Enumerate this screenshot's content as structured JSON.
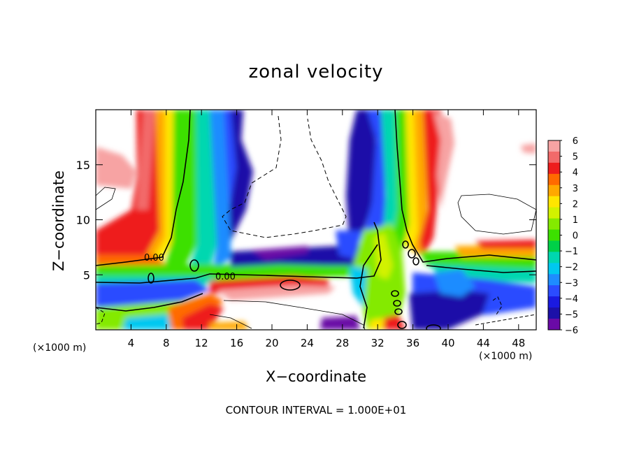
{
  "chart_data": {
    "type": "heatmap",
    "title": "zonal velocity",
    "xlabel": "X−coordinate",
    "ylabel": "Z−coordinate",
    "x_unit_left": "(×1000 m)",
    "x_unit_right": "(×1000 m)",
    "footer": "CONTOUR INTERVAL = 1.000E+01",
    "xlim": [
      0,
      50
    ],
    "ylim": [
      0,
      20
    ],
    "x_ticks": [
      4,
      8,
      12,
      16,
      20,
      24,
      28,
      32,
      36,
      40,
      44,
      48
    ],
    "y_ticks": [
      5,
      10,
      15
    ],
    "contour_labels": [
      "0.00",
      "0.00"
    ],
    "colorbar": {
      "ticks": [
        6,
        5,
        4,
        3,
        2,
        1,
        0,
        -1,
        -2,
        -3,
        -4,
        -5,
        -6
      ],
      "range": [
        -6,
        6
      ],
      "colors": [
        "#f7a3a3",
        "#f26a6a",
        "#ee1d1d",
        "#ff6a00",
        "#ffa800",
        "#ffe600",
        "#d2f200",
        "#84ea00",
        "#3ce000",
        "#00d048",
        "#00d7b0",
        "#00c8f0",
        "#1e8cff",
        "#2b4cff",
        "#1a1ae0",
        "#1c10a8",
        "#6a0aa6"
      ]
    },
    "grid": false,
    "legend": "colorbar-right"
  }
}
